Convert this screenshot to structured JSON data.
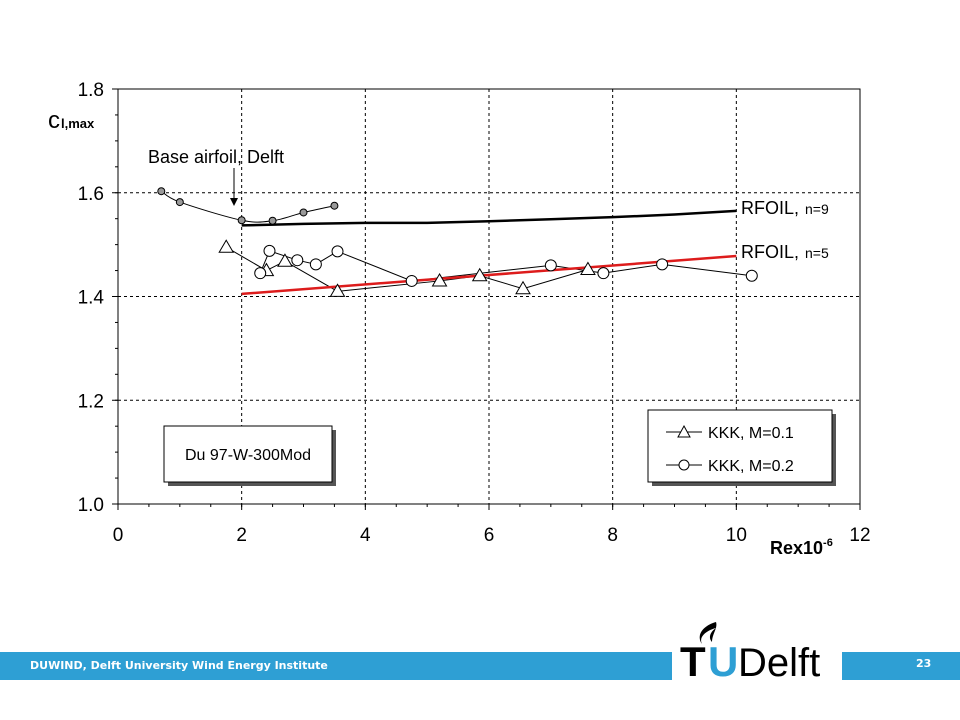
{
  "chart_data": {
    "type": "scatter",
    "xlabel": "Rex10",
    "xlabel_exp": "-6",
    "ylabel": "c",
    "ylabel_sub": "l,max",
    "xlim": [
      0,
      12
    ],
    "ylim": [
      1.0,
      1.8
    ],
    "xticks": [
      "0",
      "2",
      "4",
      "6",
      "8",
      "10",
      "12"
    ],
    "yticks": [
      "1.0",
      "1.2",
      "1.4",
      "1.6",
      "1.8"
    ],
    "grid": true,
    "legend_position": "bottom-right",
    "series": [
      {
        "name": "KKK, M=0.1",
        "marker": "triangle",
        "x": [
          1.75,
          2.4,
          2.7,
          3.55,
          5.2,
          5.85,
          6.55,
          7.6
        ],
        "y": [
          1.495,
          1.45,
          1.468,
          1.41,
          1.43,
          1.44,
          1.415,
          1.452
        ]
      },
      {
        "name": "KKK, M=0.2",
        "marker": "circle",
        "x": [
          2.3,
          2.45,
          2.9,
          3.2,
          3.55,
          4.75,
          7.0,
          7.85,
          8.8,
          10.25
        ],
        "y": [
          1.445,
          1.488,
          1.47,
          1.462,
          1.487,
          1.43,
          1.46,
          1.445,
          1.462,
          1.44
        ]
      },
      {
        "name": "Base airfoil, Delft",
        "marker": "small-circle",
        "x": [
          0.7,
          1.0,
          2.0,
          2.5,
          3.0,
          3.5
        ],
        "y": [
          1.603,
          1.582,
          1.547,
          1.546,
          1.562,
          1.575
        ]
      },
      {
        "name": "RFOIL, n=9",
        "marker": "none",
        "x": [
          2.0,
          3.0,
          4.0,
          5.0,
          6.0,
          7.0,
          8.0,
          9.0,
          10.0
        ],
        "y": [
          1.537,
          1.54,
          1.542,
          1.542,
          1.545,
          1.549,
          1.553,
          1.558,
          1.565
        ]
      },
      {
        "name": "RFOIL, n=5",
        "marker": "none",
        "x": [
          2.0,
          10.0
        ],
        "y": [
          1.405,
          1.478
        ]
      }
    ],
    "annotations": {
      "base_label": "Base airfoil, Delft",
      "rfoil9_label": "RFOIL,",
      "rfoil9_n": "n=9",
      "rfoil5_label": "RFOIL,",
      "rfoil5_n": "n=5",
      "airfoil_box": "Du 97-W-300Mod"
    },
    "legend": [
      "KKK, M=0.1",
      "KKK, M=0.2"
    ],
    "colors": {
      "rfoil5": "#dd1c1c",
      "axis": "#000000",
      "marker_fill": "#999999"
    }
  },
  "footer": {
    "institute": "DUWIND, Delft University Wind Energy Institute",
    "page": "23",
    "logo_t": "T",
    "logo_u": "U",
    "logo_delft": "Delft",
    "bar_color": "#2e9fd4"
  }
}
